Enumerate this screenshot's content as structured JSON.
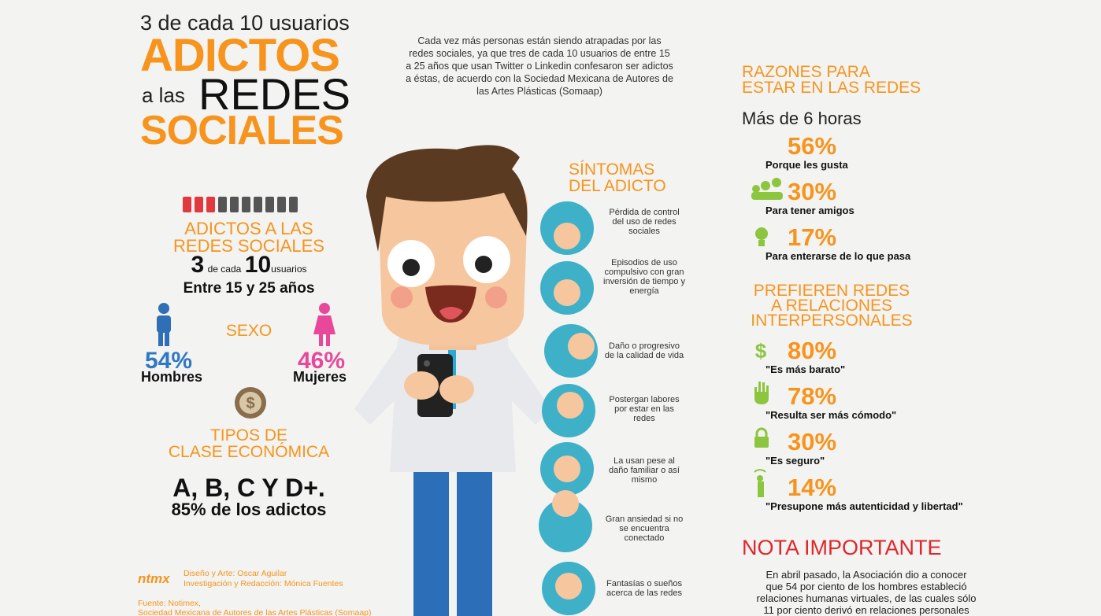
{
  "header": {
    "pre": "3 de cada 10 usuarios",
    "line1": "ADICTOS",
    "line2a": "a las",
    "line2b": "REDES",
    "line3": "SOCIALES"
  },
  "intro": "Cada vez más personas están siendo atrapadas por las redes sociales, ya que tres de cada 10 usuarios de entre 15 a 25 años que usan Twitter o Linkedin confesaron ser adictos a éstas, de acuerdo con la Sociedad Mexicana de Autores de las Artes Plásticas (Somaap)",
  "left": {
    "title": [
      "ADICTOS A LAS",
      "REDES SOCIALES"
    ],
    "n1": "3",
    "of": "de cada",
    "n2": "10",
    "users": "usuarios",
    "age": "Entre 15 y 25 años",
    "sex_title": "SEXO",
    "men_pct": "54%",
    "men": "Hombres",
    "women_pct": "46%",
    "women": "Mujeres",
    "class_title": [
      "TIPOS DE",
      "CLASE ECONÓMICA"
    ],
    "classes": "A, B, C Y D+.",
    "classes_note": "85% de los adictos"
  },
  "credits": {
    "logo": "ntmx",
    "design": "Diseño y Arte: Oscar Aguilar",
    "research": "Investigación y Redacción: Mónica Fuentes",
    "source": "Fuente: Notimex,",
    "source2": "Sociedad Mexicana de Autores de las Artes Plásticas (Somaap)"
  },
  "symptoms": {
    "title": [
      "SÍNTOMAS",
      "DEL ADICTO"
    ],
    "items": [
      "Pérdida de control del uso de redes sociales",
      "Episodios de uso compulsivo con gran inversión de tiempo y energía",
      "Daño o progresivo de la calidad de vida",
      "Postergan labores por estar en las redes",
      "La usan pese al daño familiar o así mismo",
      "Gran ansiedad si no se encuentra conectado",
      "Fantasías o sueños acerca de las redes"
    ]
  },
  "reasons": {
    "title": [
      "RAZONES PARA",
      "ESTAR EN LAS REDES"
    ],
    "subtitle": "Más de 6 horas",
    "items": [
      {
        "value": "56%",
        "label": "Porque les gusta"
      },
      {
        "value": "30%",
        "label": "Para tener amigos"
      },
      {
        "value": "17%",
        "label": "Para enterarse de lo que pasa"
      }
    ]
  },
  "prefer": {
    "title": [
      "PREFIEREN REDES",
      "A RELACIONES",
      "INTERPERSONALES"
    ],
    "items": [
      {
        "value": "80%",
        "label": "\"Es más barato\""
      },
      {
        "value": "78%",
        "label": "\"Resulta ser más cómodo\""
      },
      {
        "value": "30%",
        "label": "\"Es seguro\""
      },
      {
        "value": "14%",
        "label": "\"Presupone más autenticidad y libertad\""
      }
    ]
  },
  "note": {
    "title": "NOTA IMPORTANTE",
    "lines": [
      "En abril pasado, la Asociación dio a conocer",
      "que 54 por ciento de los hombres estableció",
      "relaciones humanas virtuales, de las cuales sólo",
      "11 por ciento derivó en relaciones personales"
    ]
  }
}
